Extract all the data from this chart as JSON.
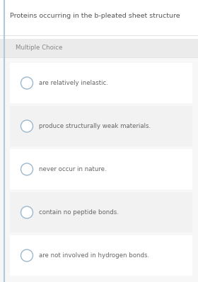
{
  "title": "Proteins occurring in the b-pleated sheet structure",
  "section_label": "Multiple Choice",
  "choices": [
    "are relatively inelastic.",
    "produce structurally weak materials.",
    "never occur in nature.",
    "contain no peptide bonds.",
    "are not involved in hydrogen bonds."
  ],
  "bg_color": "#f0f0f0",
  "outer_bg_color": "#ffffff",
  "card_bg_color": "#f7f7f7",
  "header_bg_color": "#ebebeb",
  "row_white": "#ffffff",
  "row_gray": "#f2f2f2",
  "title_color": "#555555",
  "section_color": "#888888",
  "choice_text_color": "#666666",
  "circle_edge_color": "#9db8cc",
  "left_border_color": "#b0c8d8",
  "title_fontsize": 6.8,
  "section_fontsize": 6.2,
  "choice_fontsize": 6.2
}
